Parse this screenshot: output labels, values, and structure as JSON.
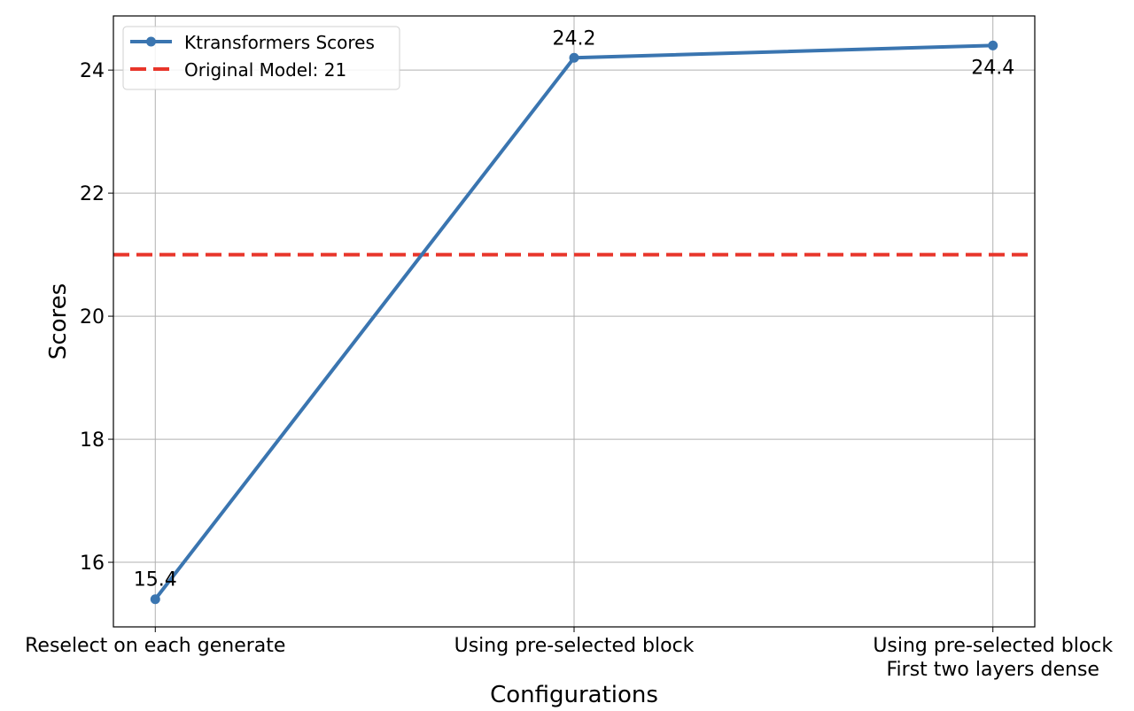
{
  "chart_data": {
    "type": "line",
    "title": "",
    "xlabel": "Configurations",
    "ylabel": "Scores",
    "categories": [
      "Reselect on each generate",
      "Using pre-selected block",
      "Using pre-selected block\nFirst two layers dense"
    ],
    "series": [
      {
        "name": "Ktransformers Scores",
        "values": [
          15.4,
          24.2,
          24.4
        ],
        "color": "#3a75b0",
        "data_labels": [
          "15.4",
          "24.2",
          "24.4"
        ]
      }
    ],
    "reference_lines": [
      {
        "name": "Original Model: 21",
        "y": 21,
        "color": "#e8352a",
        "style": "dashed"
      }
    ],
    "yticks": [
      16,
      18,
      20,
      22,
      24
    ],
    "ylim": [
      14.95,
      24.88
    ],
    "xlim": [
      -0.1,
      2.1
    ],
    "grid": true,
    "legend": "top-left"
  }
}
